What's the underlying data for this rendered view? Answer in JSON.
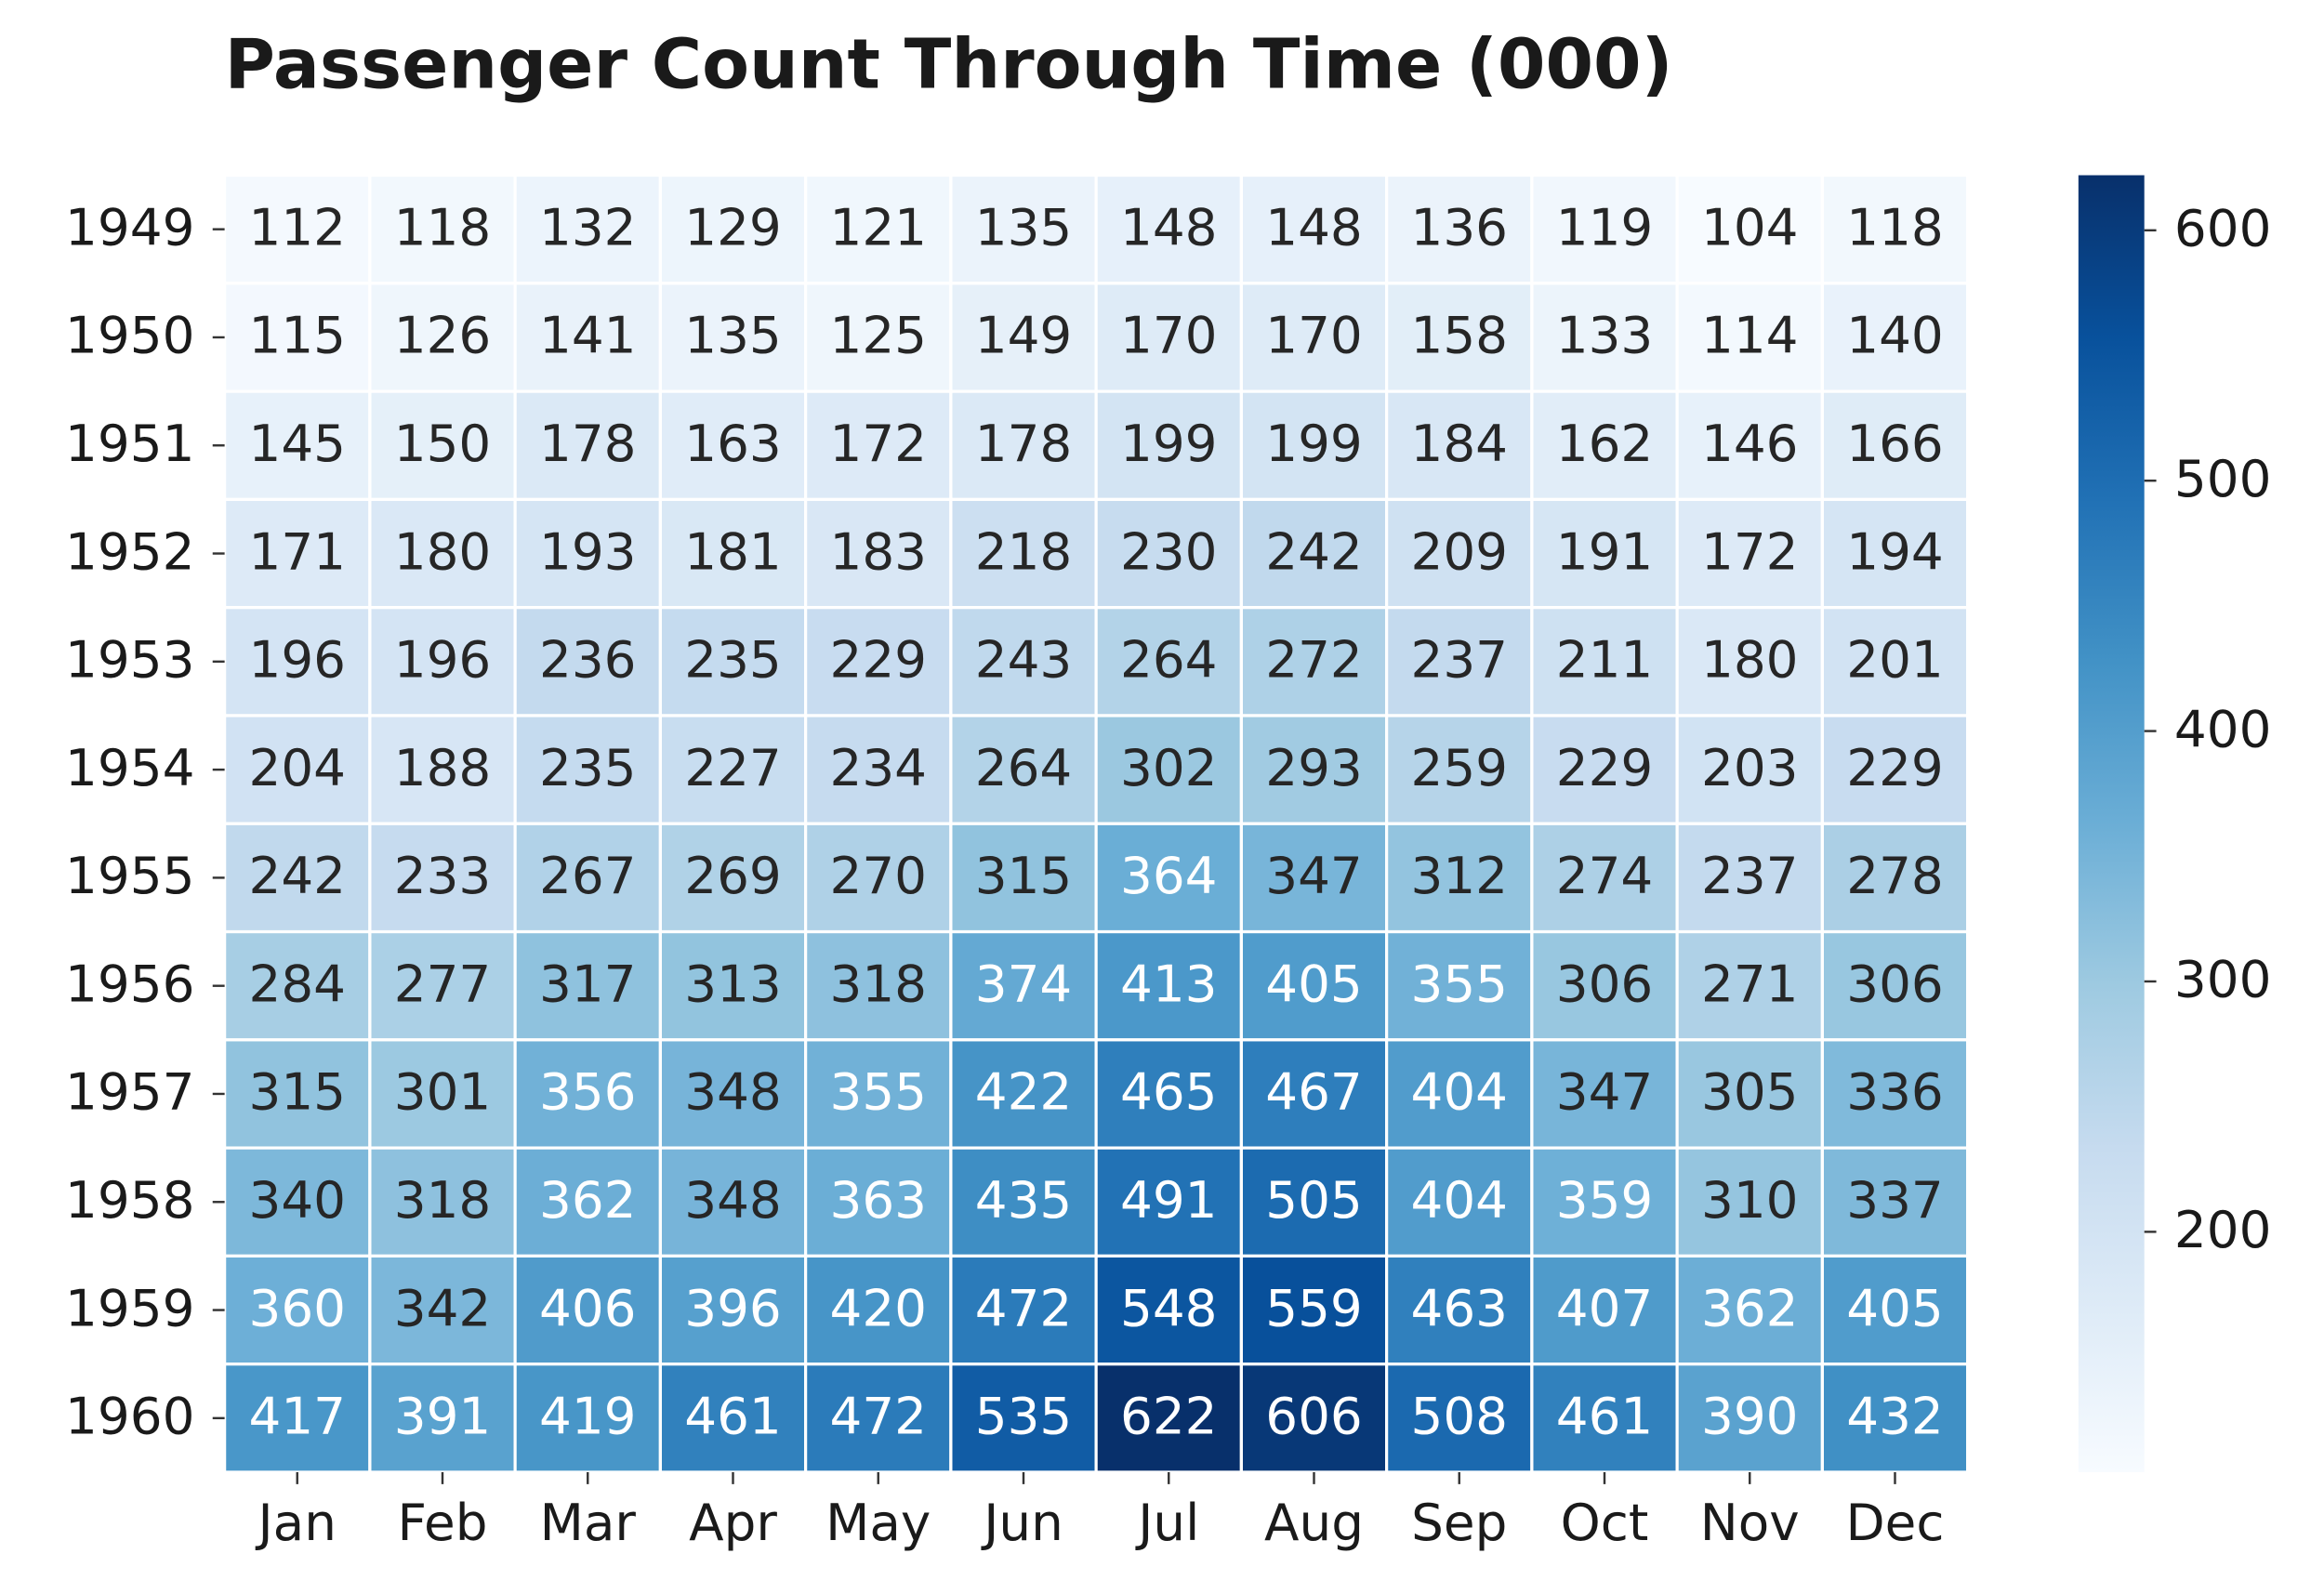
{
  "chart_data": {
    "type": "heatmap",
    "title": "Passenger Count Through Time (000)",
    "x_categories": [
      "Jan",
      "Feb",
      "Mar",
      "Apr",
      "May",
      "Jun",
      "Jul",
      "Aug",
      "Sep",
      "Oct",
      "Nov",
      "Dec"
    ],
    "y_categories": [
      "1949",
      "1950",
      "1951",
      "1952",
      "1953",
      "1954",
      "1955",
      "1956",
      "1957",
      "1958",
      "1959",
      "1960"
    ],
    "values": [
      [
        112,
        118,
        132,
        129,
        121,
        135,
        148,
        148,
        136,
        119,
        104,
        118
      ],
      [
        115,
        126,
        141,
        135,
        125,
        149,
        170,
        170,
        158,
        133,
        114,
        140
      ],
      [
        145,
        150,
        178,
        163,
        172,
        178,
        199,
        199,
        184,
        162,
        146,
        166
      ],
      [
        171,
        180,
        193,
        181,
        183,
        218,
        230,
        242,
        209,
        191,
        172,
        194
      ],
      [
        196,
        196,
        236,
        235,
        229,
        243,
        264,
        272,
        237,
        211,
        180,
        201
      ],
      [
        204,
        188,
        235,
        227,
        234,
        264,
        302,
        293,
        259,
        229,
        203,
        229
      ],
      [
        242,
        233,
        267,
        269,
        270,
        315,
        364,
        347,
        312,
        274,
        237,
        278
      ],
      [
        284,
        277,
        317,
        313,
        318,
        374,
        413,
        405,
        355,
        306,
        271,
        306
      ],
      [
        315,
        301,
        356,
        348,
        355,
        422,
        465,
        467,
        404,
        347,
        305,
        336
      ],
      [
        340,
        318,
        362,
        348,
        363,
        435,
        491,
        505,
        404,
        359,
        310,
        337
      ],
      [
        360,
        342,
        406,
        396,
        420,
        472,
        548,
        559,
        463,
        407,
        362,
        405
      ],
      [
        417,
        391,
        419,
        461,
        472,
        535,
        622,
        606,
        508,
        461,
        390,
        432
      ]
    ],
    "colormap": "Blues",
    "clim": [
      104,
      622
    ],
    "cticks": [
      200,
      300,
      400,
      500,
      600
    ]
  }
}
